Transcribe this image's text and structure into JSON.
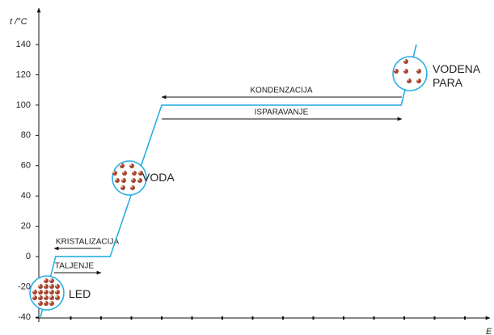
{
  "chart_data": {
    "type": "line",
    "y_label": "t /°C",
    "x_label": "E",
    "x": [
      0,
      0.5,
      2.3,
      4,
      11.9,
      12.4
    ],
    "series": [
      {
        "color": "#2aaee4",
        "values": [
          -40,
          0,
          0,
          100,
          100,
          140
        ]
      }
    ],
    "xlim": [
      0,
      15
    ],
    "xticks": [
      1,
      2,
      3,
      4,
      5,
      6,
      7,
      8,
      9,
      10,
      11,
      12,
      13,
      14
    ],
    "ylim": [
      -40,
      140
    ],
    "yticks": [
      -40,
      -20,
      0,
      20,
      40,
      60,
      80,
      100,
      120,
      140
    ],
    "transitions": [
      "KONDENZACIJA",
      "ISPARAVANJE",
      "KRISTALIZACIJA",
      "TALJENJE"
    ],
    "states": [
      "LED",
      "VODA",
      "VODENA PARA"
    ]
  }
}
